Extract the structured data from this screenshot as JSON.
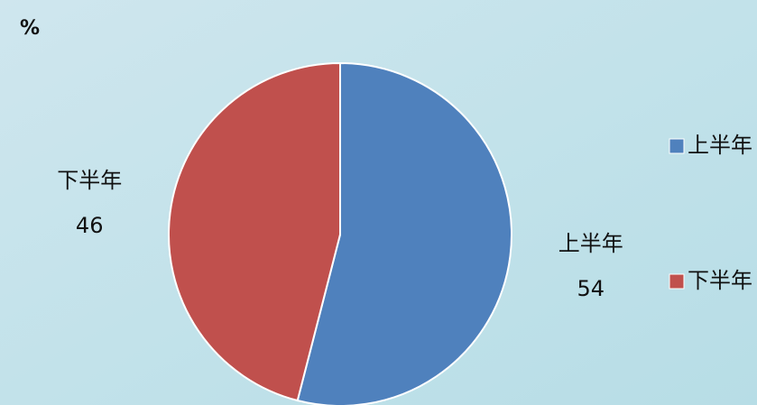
{
  "chart_data": {
    "type": "pie",
    "title": "%",
    "categories": [
      "上半年",
      "下半年"
    ],
    "values": [
      54,
      46
    ],
    "colors": [
      "#4f81bd",
      "#c0504d"
    ],
    "legend": "right"
  }
}
